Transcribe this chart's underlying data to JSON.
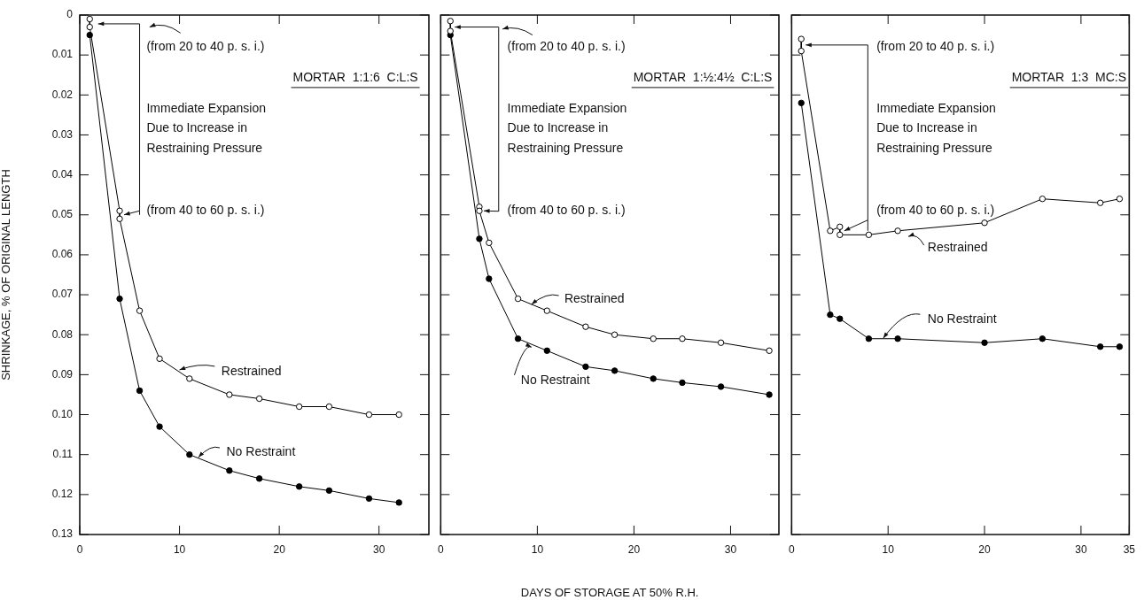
{
  "chart_data": [
    {
      "type": "line",
      "ylabel": "SHRINKAGE, % OF ORIGINAL LENGTH",
      "xlim": [
        0,
        35
      ],
      "xticks": [
        0,
        10,
        20,
        30
      ],
      "ylim": [
        0.13,
        0
      ],
      "yticks": [
        0,
        0.01,
        0.02,
        0.03,
        0.04,
        0.05,
        0.06,
        0.07,
        0.08,
        0.09,
        {
          "value": 0.1,
          "label": "0.10"
        },
        0.11,
        0.12,
        0.13
      ],
      "marker": "circle",
      "annotations": [
        "MORTAR  1:1:6  C:L:S",
        "(from 20 to 40 p. s. i.)",
        "Immediate Expansion\nDue to Increase in\nRestraining Pressure",
        {
          "text": "(from 40 to 60 p. s. i.)",
          "x": 4,
          "y": 0.05
        }
      ],
      "series": [
        {
          "name": "Restrained",
          "color": "#000000",
          "x": [
            1,
            1,
            4,
            4,
            6,
            8,
            11,
            15,
            18,
            22,
            25,
            29,
            32
          ],
          "values": [
            0.001,
            0.003,
            0.049,
            0.051,
            0.074,
            0.086,
            0.091,
            0.095,
            0.096,
            0.098,
            0.098,
            0.1,
            0.1
          ]
        },
        {
          "name": "No Restraint",
          "color": "#000000",
          "x": [
            1,
            4,
            6,
            8,
            11,
            15,
            18,
            22,
            25,
            29,
            32
          ],
          "values": [
            0.005,
            0.071,
            0.094,
            0.103,
            0.11,
            0.114,
            0.116,
            0.118,
            0.119,
            0.121,
            0.122
          ]
        }
      ]
    },
    {
      "type": "line",
      "xlabel": "DAYS OF STORAGE AT 50% R.H.",
      "xlim": [
        0,
        35
      ],
      "xticks": [
        0,
        10,
        20,
        30
      ],
      "ylim": [
        0.13,
        0
      ],
      "yticks": [
        0,
        0.01,
        0.02,
        0.03,
        0.04,
        0.05,
        0.06,
        0.07,
        0.08,
        0.09,
        0.1,
        0.11,
        0.12,
        0.13
      ],
      "marker": "circle",
      "tick_labels": "x",
      "annotations": [
        "MORTAR  1:½:4½  C:L:S",
        {
          "text": "(from 20 to 40 p. s. i.)",
          "x": 1,
          "y": 0.003
        },
        "Immediate Expansion\nDue to Increase in\nRestraining Pressure",
        {
          "text": "(from 40 to 60 p. s. i.)",
          "x": 4,
          "y": 0.049
        }
      ],
      "series": [
        {
          "name": "Restrained",
          "color": "#000000",
          "x": [
            1,
            1,
            4,
            4,
            5,
            8,
            11,
            15,
            18,
            22,
            25,
            29,
            34
          ],
          "values": [
            0.0015,
            0.004,
            0.048,
            0.049,
            0.057,
            0.071,
            0.074,
            0.078,
            0.08,
            0.081,
            0.081,
            0.082,
            0.084
          ]
        },
        {
          "name": "No Restraint",
          "color": "#000000",
          "x": [
            1,
            4,
            5,
            8,
            11,
            15,
            18,
            22,
            25,
            29,
            34
          ],
          "values": [
            0.005,
            0.056,
            0.066,
            0.081,
            0.084,
            0.088,
            0.089,
            0.091,
            0.092,
            0.093,
            0.095
          ]
        }
      ]
    },
    {
      "type": "line",
      "xlim": [
        0,
        35
      ],
      "xticks": [
        0,
        10,
        20,
        30,
        35
      ],
      "ylim": [
        0.13,
        0
      ],
      "yticks": [
        0,
        0.01,
        0.02,
        0.03,
        0.04,
        0.05,
        0.06,
        0.07,
        0.08,
        0.09,
        0.1,
        0.11,
        0.12,
        0.13
      ],
      "marker": "circle",
      "tick_labels": "x",
      "annotations": [
        "MORTAR  1:3  MC:S",
        {
          "text": "(from 20 to 40 p. s. i.)",
          "x": 1,
          "y": 0.0075
        },
        "Immediate Expansion\nDue to Increase in\nRestraining Pressure",
        {
          "text": "(from 40 to 60 p. s. i.)",
          "x": 5,
          "y": 0.054
        }
      ],
      "series": [
        {
          "name": "Restrained",
          "color": "#000000",
          "x": [
            1,
            1,
            4,
            5,
            5,
            8,
            11,
            20,
            26,
            32,
            34
          ],
          "values": [
            0.006,
            0.009,
            0.054,
            0.053,
            0.055,
            0.055,
            0.054,
            0.052,
            0.046,
            0.047,
            0.046
          ]
        },
        {
          "name": "No Restraint",
          "color": "#000000",
          "x": [
            1,
            4,
            5,
            8,
            11,
            20,
            26,
            32,
            34
          ],
          "values": [
            0.022,
            0.075,
            0.076,
            0.081,
            0.081,
            0.082,
            0.081,
            0.083,
            0.083
          ]
        }
      ]
    }
  ]
}
